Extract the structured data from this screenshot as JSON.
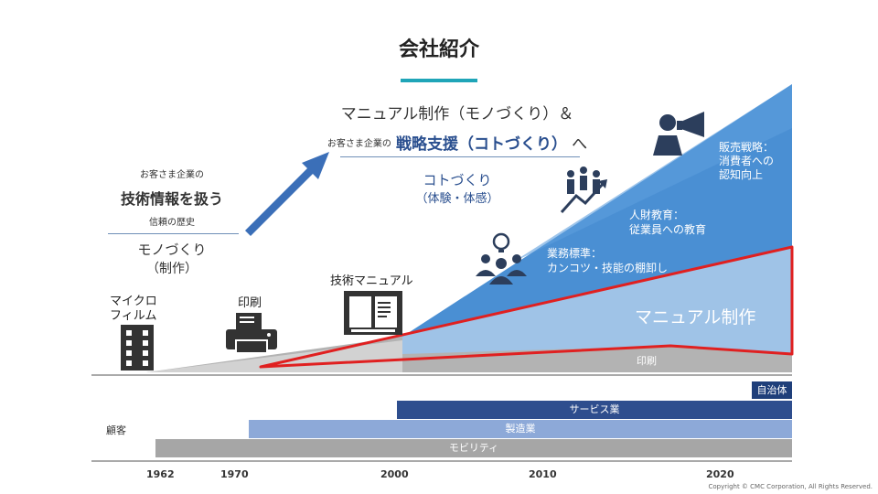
{
  "title": "会社紹介",
  "headline": {
    "main": "マニュアル制作（モノづくり）＆",
    "sub_prefix": "お客さま企業の",
    "sub_main": "戦略支援（コトづくり）",
    "sub_tail": "へ",
    "koto_line1": "コトづくり",
    "koto_line2": "（体験・体感）"
  },
  "left_block": {
    "prefix": "お客さま企業の",
    "main": "技術情報を扱う",
    "history": "信頼の歴史",
    "mono_line1": "モノづくり",
    "mono_line2": "（制作）"
  },
  "media": {
    "microfilm_line1": "マイクロ",
    "microfilm_line2": "フィルム",
    "print": "印刷",
    "tech_manual": "技術マニュアル"
  },
  "areas": {
    "manual_production": "マニュアル制作",
    "print": "印刷",
    "business_std_line1": "業務標準：",
    "business_std_line2": "カンコツ・技能の棚卸し",
    "hr_line1": "人財教育：",
    "hr_line2": "従業員への教育",
    "sales_line1": "販売戦略：",
    "sales_line2": "消費者への",
    "sales_line3": "認知向上"
  },
  "customers": {
    "label": "顧客",
    "local_gov": "自治体",
    "service": "サービス業",
    "manufacturing": "製造業",
    "mobility": "モビリティ"
  },
  "years": [
    "1962",
    "1970",
    "2000",
    "2010",
    "2020"
  ],
  "copyright": "Copyright © CMC Corporation, All Rights Reserved.",
  "colors": {
    "accent_teal": "#1fa5b8",
    "dark_blue": "#2a4f8f",
    "mid_blue": "#3b7fc4",
    "light_blue": "#9fc3e7",
    "red_outline": "#e02020",
    "gray": "#a6a6a6",
    "navy_bar": "#2e4e8e",
    "periwinkle_bar": "#8da9d8",
    "navy_box": "#1f3f7a"
  },
  "icons": [
    "film-strip-icon",
    "printer-icon",
    "open-manual-icon",
    "team-idea-icon",
    "growth-people-icon",
    "megaphone-person-icon",
    "diagonal-arrow-icon"
  ]
}
